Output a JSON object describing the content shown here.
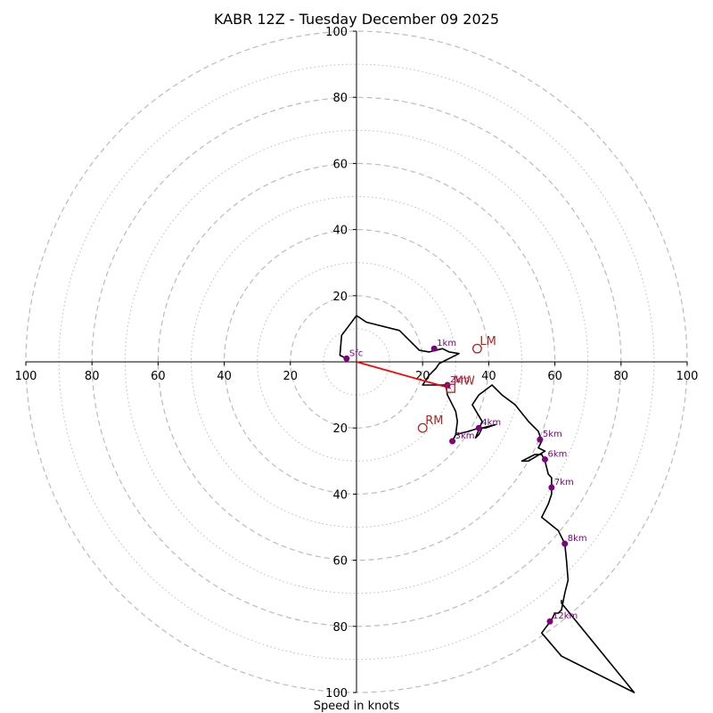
{
  "chart_data": {
    "type": "hodograph",
    "title": "KABR 12Z - Tuesday December 09 2025",
    "xlabel": "Speed in knots",
    "xlim": [
      -100,
      100
    ],
    "ylim": [
      -100,
      100
    ],
    "rings_major": [
      20,
      40,
      60,
      80,
      100
    ],
    "rings_minor": [
      10,
      30,
      50,
      70,
      90
    ],
    "x_tick_labels": [
      "100",
      "80",
      "60",
      "40",
      "20",
      "20",
      "40",
      "60",
      "80",
      "100"
    ],
    "y_tick_labels": [
      "100",
      "80",
      "60",
      "40",
      "20",
      "20",
      "40",
      "60",
      "80",
      "100"
    ],
    "hodograph_trace": [
      [
        -3,
        1
      ],
      [
        -5,
        2
      ],
      [
        -4.5,
        8
      ],
      [
        0,
        14
      ],
      [
        3,
        12
      ],
      [
        13,
        9.5
      ],
      [
        19,
        3.5
      ],
      [
        22,
        3
      ],
      [
        26,
        4
      ],
      [
        28,
        3
      ],
      [
        31,
        2.5
      ],
      [
        25,
        -0.5
      ],
      [
        24,
        -2
      ],
      [
        22,
        -4
      ],
      [
        20,
        -7
      ],
      [
        25,
        -7
      ],
      [
        27,
        -7
      ],
      [
        27.5,
        -10
      ],
      [
        29,
        -13
      ],
      [
        30,
        -15
      ],
      [
        30.5,
        -18
      ],
      [
        30,
        -22
      ],
      [
        29,
        -24
      ],
      [
        30,
        -22
      ],
      [
        34,
        -21
      ],
      [
        37,
        -20
      ],
      [
        39,
        -20
      ],
      [
        42,
        -19
      ],
      [
        38,
        -20
      ],
      [
        37,
        -22
      ],
      [
        36,
        -23
      ],
      [
        38,
        -18
      ],
      [
        35,
        -13
      ],
      [
        37,
        -10
      ],
      [
        41,
        -7
      ],
      [
        44,
        -10
      ],
      [
        48,
        -13
      ],
      [
        52,
        -18
      ],
      [
        55,
        -21
      ],
      [
        56,
        -24
      ],
      [
        55,
        -26
      ],
      [
        57,
        -27
      ],
      [
        52,
        -30
      ],
      [
        50,
        -30
      ],
      [
        54,
        -28
      ],
      [
        56,
        -28
      ],
      [
        57,
        -30
      ],
      [
        58,
        -34
      ],
      [
        59,
        -35
      ],
      [
        59,
        -38
      ],
      [
        59,
        -40
      ],
      [
        58,
        -43
      ],
      [
        56,
        -47
      ],
      [
        61,
        -51
      ],
      [
        63,
        -55
      ],
      [
        63.5,
        -60
      ],
      [
        64,
        -66
      ],
      [
        63,
        -70
      ],
      [
        62,
        -75
      ],
      [
        61,
        -76
      ],
      [
        60,
        -76
      ],
      [
        59,
        -78
      ],
      [
        56,
        -82
      ],
      [
        62,
        -89
      ],
      [
        84,
        -100
      ],
      [
        62,
        -73
      ],
      [
        62,
        -72
      ]
    ],
    "height_markers": [
      {
        "label": "Sfc",
        "u": -3,
        "v": 1
      },
      {
        "label": "1km",
        "u": 23.5,
        "v": 4
      },
      {
        "label": "2km",
        "u": 27.5,
        "v": -7
      },
      {
        "label": "3km",
        "u": 29,
        "v": -24
      },
      {
        "label": "4km",
        "u": 37,
        "v": -20
      },
      {
        "label": "5km",
        "u": 55.5,
        "v": -23.5
      },
      {
        "label": "6km",
        "u": 57,
        "v": -29.5
      },
      {
        "label": "7km",
        "u": 59,
        "v": -38
      },
      {
        "label": "8km",
        "u": 63,
        "v": -55
      },
      {
        "label": "12km",
        "u": 58.5,
        "v": -78.5
      }
    ],
    "storm_motions": [
      {
        "label": "LM",
        "u": 36.5,
        "v": 4,
        "shape": "circle"
      },
      {
        "label": "RM",
        "u": 20,
        "v": -20,
        "shape": "circle"
      },
      {
        "label": "MW",
        "u": 28.5,
        "v": -8,
        "shape": "square"
      }
    ],
    "shear_vector": {
      "from": [
        0,
        0
      ],
      "to": [
        28.5,
        -8
      ]
    },
    "colors": {
      "trace": "#000000",
      "marker": "#800080",
      "storm_motion": "#b22222",
      "shear_vector": "#ff0000",
      "grid": "#bbbbbb",
      "axes": "#000000"
    }
  }
}
